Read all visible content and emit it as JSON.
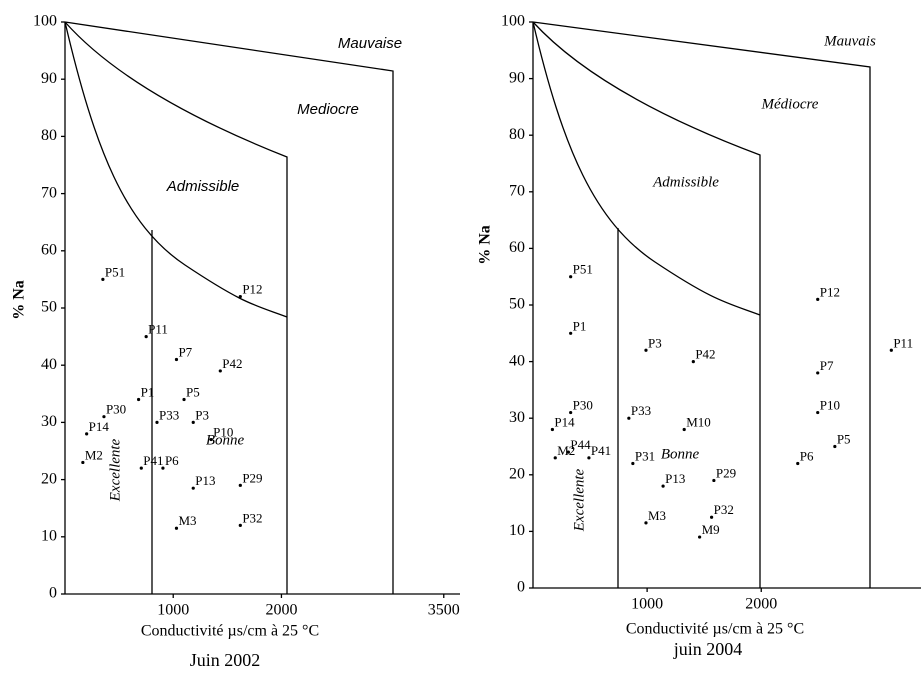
{
  "chart_data": [
    {
      "type": "scatter",
      "subtitle": "Juin 2002",
      "xlabel": "Conductivité µs/cm à 25 °C",
      "ylabel": "% Na",
      "xlim": [
        0,
        3650
      ],
      "ylim": [
        0,
        100
      ],
      "xticks": [
        1000,
        2000,
        3500
      ],
      "yticks": [
        0,
        10,
        20,
        30,
        40,
        50,
        60,
        70,
        80,
        90,
        100
      ],
      "zones": [
        "Mauvaise",
        "Mediocre",
        "Admissible",
        "Bonne",
        "Excellente"
      ],
      "point_labels": [
        "P51",
        "P11",
        "P7",
        "P12",
        "P42",
        "P1",
        "P5",
        "P30",
        "P33",
        "P3",
        "P14",
        "P10",
        "M2",
        "P41",
        "P6",
        "P13",
        "P29",
        "M3",
        "P32"
      ],
      "x": [
        350,
        750,
        1030,
        1620,
        1435,
        680,
        1100,
        360,
        850,
        1185,
        200,
        1350,
        165,
        705,
        905,
        1185,
        1620,
        1030,
        1620
      ],
      "values": [
        55,
        45,
        41,
        52,
        39,
        34,
        34,
        31,
        30,
        30,
        28,
        27,
        23,
        22,
        22,
        18.5,
        19,
        11.5,
        12
      ],
      "color": "#000000"
    },
    {
      "type": "scatter",
      "subtitle": "juin 2004",
      "xlabel": "Conductivité µs/cm à 25 °C",
      "ylabel": "% Na",
      "xlim": [
        0,
        3400
      ],
      "ylim": [
        0,
        100
      ],
      "xticks": [
        1000,
        2000
      ],
      "yticks": [
        0,
        10,
        20,
        30,
        40,
        50,
        60,
        70,
        80,
        90,
        100
      ],
      "zones": [
        "Mauvais",
        "Médiocre",
        "Admissible",
        "Bonne",
        "Excellente"
      ],
      "point_labels": [
        "P51",
        "P1",
        "P3",
        "P42",
        "P12",
        "P7",
        "P11",
        "P10",
        "P30",
        "P14",
        "P33",
        "M10",
        "P5",
        "P6",
        "M2",
        "P44",
        "P41",
        "P31",
        "P13",
        "P29",
        "M3",
        "P32",
        "M9"
      ],
      "x": [
        330,
        330,
        990,
        1405,
        2495,
        2495,
        3140,
        2495,
        330,
        170,
        840,
        1325,
        2645,
        2320,
        195,
        310,
        490,
        875,
        1140,
        1585,
        990,
        1565,
        1460
      ],
      "values": [
        55,
        45,
        42,
        40,
        51,
        38,
        42,
        31,
        31,
        28,
        30,
        28,
        25,
        22,
        23,
        24,
        23,
        22,
        18,
        19,
        11.5,
        12.5,
        9
      ],
      "color": "#000000"
    }
  ]
}
